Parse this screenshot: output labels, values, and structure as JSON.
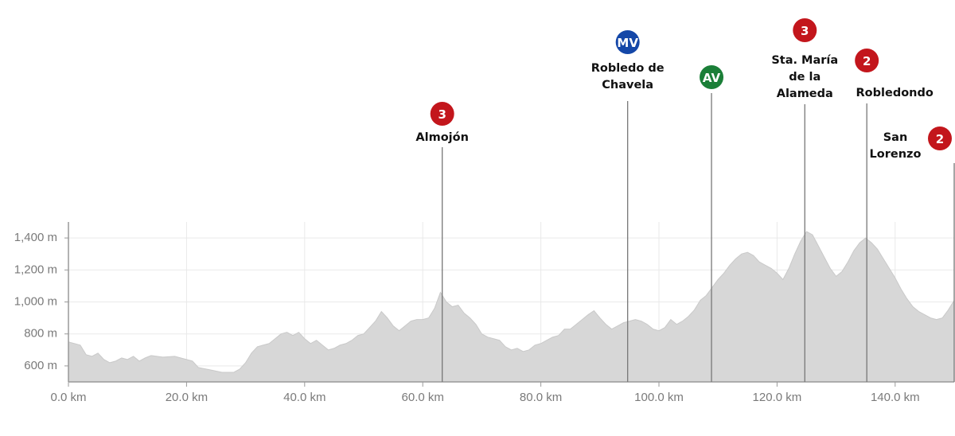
{
  "chart_data": {
    "type": "area",
    "x": [
      0,
      2,
      3,
      4,
      5,
      6,
      7,
      8,
      9,
      10,
      11,
      12,
      13,
      14,
      16,
      18,
      19,
      21,
      22,
      24,
      26,
      28,
      29,
      30,
      31,
      32,
      33,
      34,
      35,
      36,
      37,
      38,
      39,
      40,
      41,
      42,
      43,
      44,
      45,
      46,
      47,
      48,
      49,
      50,
      51,
      52,
      53,
      54,
      55,
      56,
      57,
      58,
      59,
      60,
      61,
      62,
      63,
      64,
      65,
      66,
      67,
      68,
      69,
      70,
      71,
      72,
      73,
      74,
      75,
      76,
      77,
      78,
      79,
      80,
      81,
      82,
      83,
      84,
      85,
      86,
      87,
      88,
      89,
      90,
      91,
      92,
      93,
      94,
      95,
      96,
      97,
      98,
      99,
      100,
      101,
      102,
      103,
      104,
      105,
      106,
      107,
      108,
      109,
      110,
      111,
      112,
      113,
      114,
      115,
      116,
      117,
      118,
      119,
      120,
      121,
      122,
      123,
      124,
      125,
      126,
      127,
      128,
      129,
      130,
      131,
      132,
      133,
      134,
      135,
      136,
      137,
      138,
      139,
      140,
      141,
      142,
      143,
      144,
      145,
      146,
      147,
      148,
      149,
      150
    ],
    "values": [
      750,
      730,
      670,
      660,
      680,
      640,
      620,
      630,
      650,
      640,
      660,
      630,
      650,
      665,
      655,
      660,
      650,
      630,
      590,
      575,
      560,
      560,
      580,
      620,
      680,
      720,
      730,
      740,
      770,
      800,
      810,
      790,
      810,
      770,
      740,
      760,
      730,
      700,
      710,
      730,
      740,
      760,
      790,
      800,
      840,
      880,
      940,
      900,
      850,
      820,
      850,
      880,
      890,
      890,
      900,
      960,
      1060,
      1000,
      970,
      980,
      930,
      900,
      860,
      800,
      780,
      770,
      760,
      720,
      700,
      710,
      690,
      700,
      730,
      740,
      760,
      780,
      790,
      830,
      830,
      860,
      890,
      920,
      945,
      900,
      860,
      830,
      850,
      870,
      880,
      890,
      880,
      860,
      830,
      820,
      840,
      890,
      860,
      880,
      910,
      950,
      1010,
      1040,
      1090,
      1140,
      1180,
      1230,
      1270,
      1300,
      1310,
      1290,
      1250,
      1230,
      1210,
      1180,
      1140,
      1210,
      1300,
      1380,
      1440,
      1420,
      1350,
      1280,
      1210,
      1160,
      1190,
      1250,
      1320,
      1370,
      1400,
      1370,
      1330,
      1270,
      1210,
      1150,
      1080,
      1020,
      970,
      940,
      920,
      900,
      890,
      900,
      950,
      1010
    ],
    "color": "#d7d7d7",
    "xlim": [
      0,
      150
    ],
    "ylim": [
      500,
      1500
    ],
    "xticks": [
      {
        "value": 0,
        "label": "0.0 km"
      },
      {
        "value": 20,
        "label": "20.0 km"
      },
      {
        "value": 40,
        "label": "40.0 km"
      },
      {
        "value": 60,
        "label": "60.0 km"
      },
      {
        "value": 80,
        "label": "80.0 km"
      },
      {
        "value": 100,
        "label": "100.0 km"
      },
      {
        "value": 120,
        "label": "120.0 km"
      },
      {
        "value": 140,
        "label": "140.0 km"
      }
    ],
    "yticks": [
      {
        "value": 600,
        "label": "600 m"
      },
      {
        "value": 800,
        "label": "800 m"
      },
      {
        "value": 1000,
        "label": "1,000 m"
      },
      {
        "value": 1200,
        "label": "1,200 m"
      },
      {
        "value": 1400,
        "label": "1,400 m"
      }
    ],
    "grid": true,
    "markers": [
      {
        "x": 63.3,
        "badge": "3",
        "color": "#c3161c",
        "label": [
          "Almojón"
        ]
      },
      {
        "x": 94.7,
        "badge": "MV",
        "color": "#1447a8",
        "label": [
          "Robledo de",
          "Chavela"
        ]
      },
      {
        "x": 108.9,
        "badge": "AV",
        "color": "#1b7f38",
        "label": []
      },
      {
        "x": 124.7,
        "badge": "3",
        "color": "#c3161c",
        "label": [
          "Sta. María",
          "de la",
          "Alameda"
        ]
      },
      {
        "x": 135.2,
        "badge": "2",
        "color": "#c3161c",
        "label": [
          "Robledondo"
        ]
      },
      {
        "x": 150,
        "badge": "2",
        "color": "#c3161c",
        "label": [
          "San",
          "Lorenzo"
        ]
      }
    ]
  }
}
